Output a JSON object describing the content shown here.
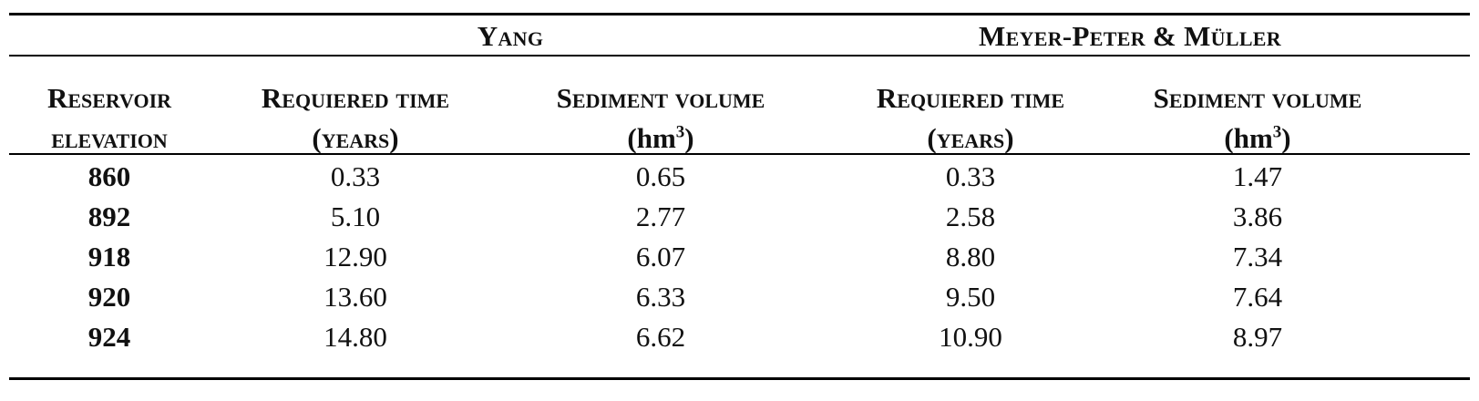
{
  "table": {
    "groups": {
      "yang": "Yang",
      "mpm": "Meyer-Peter & Müller"
    },
    "headers": {
      "elevation_line1": "Reservoir",
      "elevation_line2": "elevation",
      "time_line1": "Requiered time",
      "time_line2": "(years)",
      "volume_line1": "Sediment volume",
      "volume_unit": "(hm",
      "volume_exp": "3",
      "volume_close": ")"
    },
    "rows": [
      {
        "elevation": "860",
        "yang_time": "0.33",
        "yang_volume": "0.65",
        "mpm_time": "0.33",
        "mpm_volume": "1.47"
      },
      {
        "elevation": "892",
        "yang_time": "5.10",
        "yang_volume": "2.77",
        "mpm_time": "2.58",
        "mpm_volume": "3.86"
      },
      {
        "elevation": "918",
        "yang_time": "12.90",
        "yang_volume": "6.07",
        "mpm_time": "8.80",
        "mpm_volume": "7.34"
      },
      {
        "elevation": "920",
        "yang_time": "13.60",
        "yang_volume": "6.33",
        "mpm_time": "9.50",
        "mpm_volume": "7.64"
      },
      {
        "elevation": "924",
        "yang_time": "14.80",
        "yang_volume": "6.62",
        "mpm_time": "10.90",
        "mpm_volume": "8.97"
      }
    ]
  }
}
